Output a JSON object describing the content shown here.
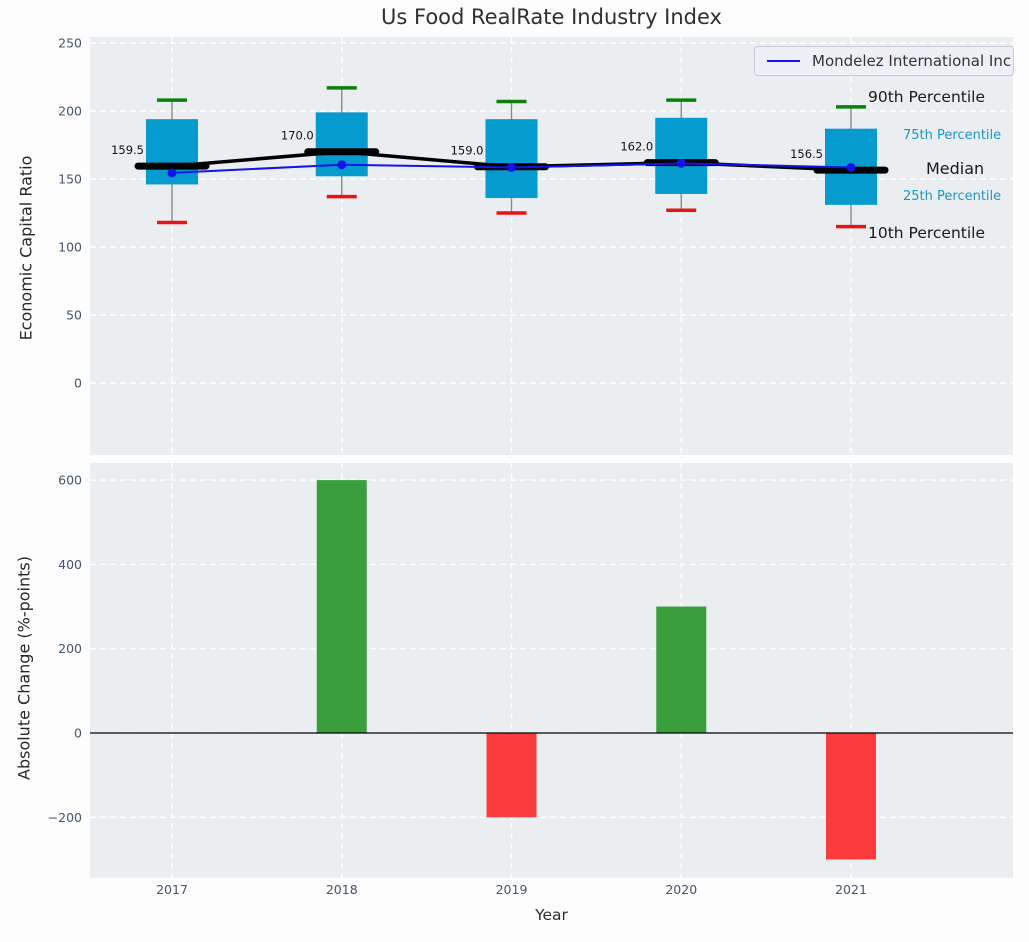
{
  "title": "Us Food RealRate Industry Index",
  "legend": {
    "label": "Mondelez International Inc"
  },
  "annotations": {
    "p90": "90th Percentile",
    "p75": "75th Percentile",
    "median": "Median",
    "p25": "25th Percentile",
    "p10": "10th Percentile"
  },
  "colors": {
    "box_fill": "#069bce",
    "cap_high": "#0b800b",
    "cap_low": "#e81414",
    "whisker": "#898989",
    "median_line": "#000000",
    "series_line": "#1414e8",
    "bar_positive": "#3a9e3d",
    "bar_negative": "#fb3b3c",
    "axes_bg": "#eaeef1",
    "grid": "#ffffff",
    "tick_label": "#44546a",
    "annotation_cyan": "#1898c8"
  },
  "chart_data": [
    {
      "type": "boxplot",
      "title": "Us Food RealRate Industry Index",
      "ylabel": "Economic Capital Ratio",
      "x": [
        "2017",
        "2018",
        "2019",
        "2020",
        "2021"
      ],
      "yticks": [
        0,
        50,
        100,
        150,
        200,
        250
      ],
      "ylim": [
        -53,
        254
      ],
      "grid": true,
      "legend_position": "upper right",
      "percentiles": {
        "p90": [
          208,
          217,
          207,
          208,
          203
        ],
        "p75": [
          194,
          199,
          194,
          195,
          187
        ],
        "median": [
          159.5,
          170.0,
          159.0,
          162.0,
          156.5
        ],
        "p25": [
          146,
          152,
          136,
          139,
          131
        ],
        "p10": [
          118,
          137,
          125,
          127,
          115
        ]
      },
      "median_labels": [
        "159.5",
        "170.0",
        "159.0",
        "162.0",
        "156.5"
      ],
      "series": [
        {
          "name": "Mondelez International Inc",
          "values": [
            154.5,
            160.5,
            158.5,
            161.5,
            158.5
          ]
        }
      ]
    },
    {
      "type": "bar",
      "ylabel": "Absolute Change (%-points)",
      "xlabel": "Year",
      "categories": [
        "2017",
        "2018",
        "2019",
        "2020",
        "2021"
      ],
      "values": [
        null,
        600,
        -200,
        300,
        -300
      ],
      "yticks": [
        -200,
        0,
        200,
        400,
        600
      ],
      "ylim": [
        -345,
        641
      ],
      "grid": true
    }
  ]
}
